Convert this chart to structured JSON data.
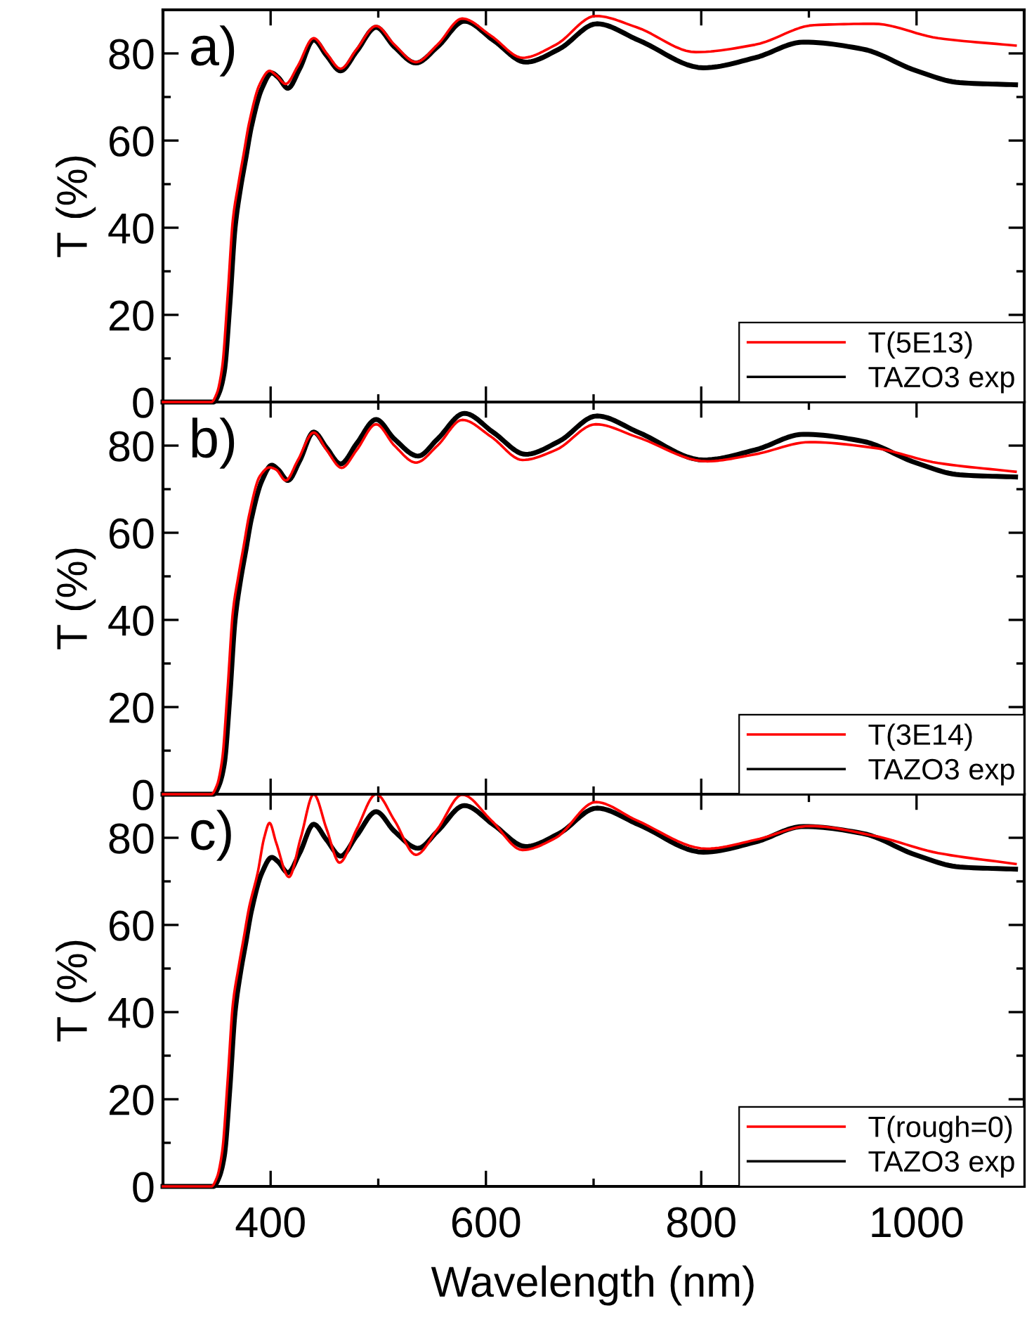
{
  "chart_data": [
    {
      "type": "line",
      "annotations": [
        "a)"
      ],
      "ylabel": "T (%)",
      "xlim": [
        300,
        1100
      ],
      "ylim": [
        0,
        90
      ],
      "xticks": [
        {
          "value": 300,
          "label": null
        },
        400,
        {
          "value": 500,
          "label": null
        },
        600,
        {
          "value": 700,
          "label": null
        },
        800,
        {
          "value": 900,
          "label": null
        },
        1000,
        {
          "value": 1100,
          "label": null
        }
      ],
      "yticks": [
        0,
        {
          "value": 10,
          "label": null
        },
        20,
        {
          "value": 30,
          "label": null
        },
        40,
        {
          "value": 50,
          "label": null
        },
        60,
        {
          "value": 70,
          "label": null
        },
        80,
        {
          "value": 90,
          "label": null
        }
      ],
      "tick_labels": "y",
      "legend": "bottom right",
      "line_style": "solid",
      "marker": "none",
      "grid": false,
      "series": [
        {
          "name": "T(5E13)",
          "color": "#ff0000",
          "x": [
            300,
            345,
            350,
            355,
            360,
            365,
            370,
            375,
            380,
            390,
            399,
            405,
            414,
            425,
            440,
            452,
            465,
            480,
            498,
            515,
            535,
            555,
            578,
            605,
            634,
            665,
            702,
            740,
            795,
            850,
            905,
            960,
            1020,
            1092
          ],
          "values": [
            0,
            0,
            2,
            8,
            24,
            42,
            50,
            57,
            64,
            73,
            76,
            75,
            73,
            77,
            83.5,
            80,
            76.5,
            81,
            86.3,
            82,
            78,
            82,
            88,
            84,
            79,
            82,
            88.6,
            86,
            80.3,
            82,
            86.5,
            86.8,
            83.5,
            81.8
          ]
        },
        {
          "name": "TAZO3 exp",
          "color": "#000000",
          "x": [
            300,
            347,
            352,
            357,
            362,
            367,
            372,
            377,
            382,
            392,
            401,
            407,
            416,
            427,
            440,
            452,
            465,
            480,
            498,
            515,
            535,
            555,
            580,
            607,
            637,
            668,
            703,
            742,
            802,
            850,
            895,
            950,
            1000,
            1040,
            1092
          ],
          "values": [
            0,
            0,
            2,
            7,
            22,
            40,
            49,
            56,
            63,
            72,
            75.5,
            74.5,
            72,
            76.5,
            83.1,
            79.5,
            76,
            80.5,
            86,
            81.5,
            77.8,
            81.5,
            87.4,
            83,
            78,
            81,
            86.8,
            83,
            76.7,
            79,
            82.6,
            81,
            76,
            73.3,
            72.8
          ]
        }
      ]
    },
    {
      "type": "line",
      "annotations": [
        "b)"
      ],
      "ylabel": "T (%)",
      "xlim": [
        300,
        1100
      ],
      "ylim": [
        0,
        90
      ],
      "xticks": [
        {
          "value": 300,
          "label": null
        },
        400,
        {
          "value": 500,
          "label": null
        },
        600,
        {
          "value": 700,
          "label": null
        },
        800,
        {
          "value": 900,
          "label": null
        },
        1000,
        {
          "value": 1100,
          "label": null
        }
      ],
      "yticks": [
        0,
        {
          "value": 10,
          "label": null
        },
        20,
        {
          "value": 30,
          "label": null
        },
        40,
        {
          "value": 50,
          "label": null
        },
        60,
        {
          "value": 70,
          "label": null
        },
        80,
        {
          "value": 90,
          "label": null
        }
      ],
      "tick_labels": "y",
      "legend": "bottom right",
      "line_style": "solid",
      "marker": "none",
      "grid": false,
      "series": [
        {
          "name": "T(3E14)",
          "color": "#ff0000",
          "x": [
            300,
            345,
            350,
            355,
            360,
            365,
            370,
            375,
            380,
            390,
            399,
            405,
            414,
            425,
            440,
            452,
            466,
            480,
            498,
            515,
            535,
            555,
            578,
            605,
            634,
            665,
            702,
            740,
            805,
            850,
            901,
            960,
            1020,
            1092
          ],
          "values": [
            0,
            0,
            2,
            8,
            24,
            42,
            50,
            57,
            64,
            73,
            75,
            74.5,
            72,
            76.5,
            83,
            79,
            74.9,
            79,
            84.9,
            80,
            76.1,
            80,
            85.9,
            82,
            76.7,
            79,
            84.9,
            82,
            76.4,
            78,
            80.8,
            79.5,
            76,
            74
          ]
        },
        {
          "name": "TAZO3 exp",
          "color": "#000000",
          "x": [
            300,
            347,
            352,
            357,
            362,
            367,
            372,
            377,
            382,
            392,
            401,
            407,
            416,
            427,
            440,
            452,
            465,
            480,
            498,
            515,
            537,
            555,
            580,
            607,
            637,
            668,
            703,
            742,
            802,
            850,
            895,
            950,
            1000,
            1040,
            1092
          ],
          "values": [
            0,
            0,
            2,
            7,
            22,
            40,
            49,
            56,
            63,
            72,
            75.5,
            74.5,
            72,
            76.5,
            83.1,
            79.5,
            75.8,
            80.5,
            86,
            81.5,
            77.6,
            81.5,
            87.4,
            83,
            78,
            81,
            86.8,
            83,
            76.7,
            79,
            82.6,
            81,
            76,
            73.3,
            72.8
          ]
        }
      ]
    },
    {
      "type": "line",
      "annotations": [
        "c)"
      ],
      "xlabel": "Wavelength (nm)",
      "ylabel": "T (%)",
      "xlim": [
        300,
        1100
      ],
      "ylim": [
        0,
        90
      ],
      "xticks": [
        {
          "value": 300,
          "label": null
        },
        400,
        {
          "value": 500,
          "label": null
        },
        600,
        {
          "value": 700,
          "label": null
        },
        800,
        {
          "value": 900,
          "label": null
        },
        1000,
        {
          "value": 1100,
          "label": null
        }
      ],
      "yticks": [
        0,
        {
          "value": 10,
          "label": null
        },
        20,
        {
          "value": 30,
          "label": null
        },
        40,
        {
          "value": 50,
          "label": null
        },
        60,
        {
          "value": 70,
          "label": null
        },
        80,
        {
          "value": 90,
          "label": null
        }
      ],
      "legend": "bottom right",
      "line_style": "solid",
      "marker": "none",
      "grid": false,
      "series": [
        {
          "name": "T(rough=0)",
          "color": "#ff0000",
          "x": [
            300,
            345,
            350,
            355,
            360,
            365,
            370,
            375,
            380,
            388,
            394,
            399,
            405,
            417,
            428,
            440,
            452,
            464,
            480,
            498,
            515,
            535,
            555,
            578,
            605,
            634,
            665,
            702,
            740,
            805,
            850,
            901,
            960,
            1020,
            1092
          ],
          "values": [
            0,
            0,
            2,
            8,
            24,
            42,
            50,
            57,
            64,
            72,
            80,
            83.4,
            79,
            71,
            80,
            90,
            82,
            74.3,
            82,
            90,
            84,
            76.1,
            82,
            89.9,
            84,
            77.2,
            80,
            88.2,
            84,
            77.5,
            79.5,
            82.7,
            80.5,
            76.5,
            74
          ]
        },
        {
          "name": "TAZO3 exp",
          "color": "#000000",
          "x": [
            300,
            347,
            352,
            357,
            362,
            367,
            372,
            377,
            382,
            392,
            401,
            407,
            416,
            427,
            440,
            452,
            465,
            480,
            498,
            515,
            537,
            555,
            580,
            607,
            637,
            668,
            703,
            742,
            802,
            850,
            895,
            950,
            1000,
            1040,
            1092
          ],
          "values": [
            0,
            0,
            2,
            7,
            22,
            40,
            49,
            56,
            63,
            72,
            75.5,
            74.5,
            72,
            76.5,
            83.1,
            79.5,
            75.8,
            80.5,
            86,
            81.5,
            77.6,
            81.5,
            87.4,
            83,
            78,
            81,
            86.8,
            83,
            76.7,
            79,
            82.6,
            81,
            76,
            73.3,
            72.8
          ]
        }
      ]
    }
  ]
}
